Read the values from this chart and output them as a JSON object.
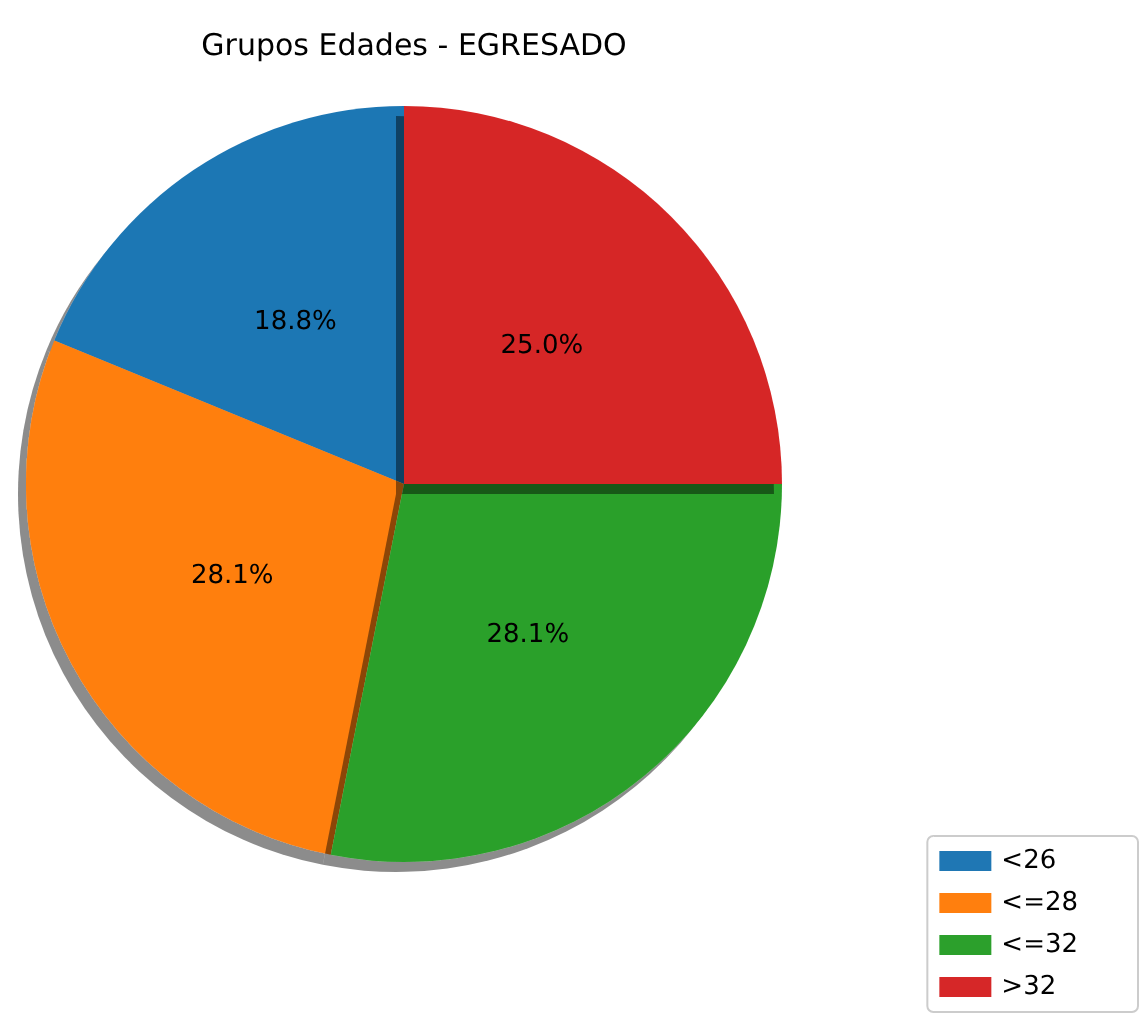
{
  "chart_data": {
    "type": "pie",
    "title": "Grupos Edades - EGRESADO",
    "categories": [
      "<26",
      "<=28",
      "<=32",
      ">32"
    ],
    "values": [
      18.8,
      28.1,
      28.1,
      25.0
    ],
    "value_labels": [
      "18.8%",
      "28.1%",
      "28.1%",
      "25.0%"
    ],
    "colors": [
      "#1f77b4",
      "#ff7f0e",
      "#2ca02c",
      "#d62728"
    ],
    "legend": "bottom right"
  }
}
